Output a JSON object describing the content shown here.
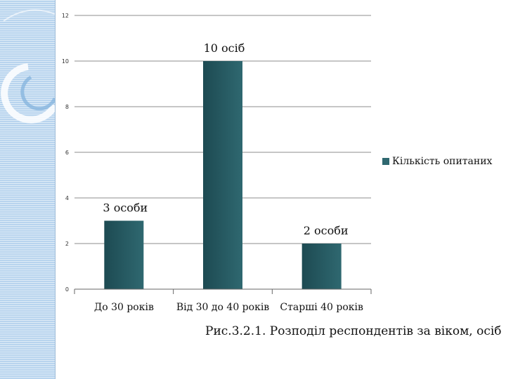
{
  "chart_data": {
    "type": "bar",
    "categories": [
      "До 30 років",
      "Від 30 до 40 років",
      "Старші 40 років"
    ],
    "series": [
      {
        "name": "Кількість опитаних",
        "values": [
          3,
          10,
          2
        ]
      }
    ],
    "data_labels": [
      "3 особи",
      "10 осіб",
      "2 особи"
    ],
    "ylim": [
      0,
      12
    ],
    "yticks": [
      0,
      2,
      4,
      6,
      8,
      10,
      12
    ],
    "grid": true,
    "legend_position": "right",
    "colors": {
      "bar": "#2f6870",
      "bar_dark": "#1d4a52",
      "grid": "#8c8c8c",
      "axis": "#666666"
    }
  },
  "legend": {
    "label": "Кількість опитаних"
  },
  "caption": "Рис.3.2.1. Розподіл респондентів за віком, осіб"
}
